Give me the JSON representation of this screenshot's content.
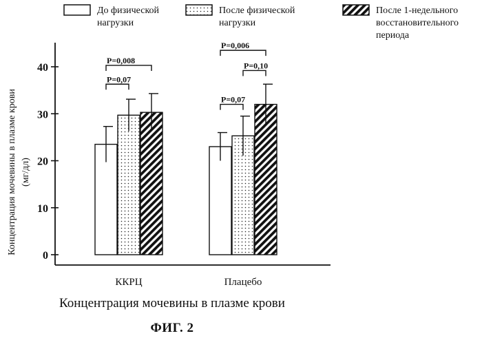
{
  "chart_data": {
    "type": "bar",
    "ylabel": "Концентрация мочевины в плазме крови",
    "yunit": "(мг/дл)",
    "ylim": [
      0,
      44
    ],
    "yticks": [
      0,
      10,
      20,
      30,
      40
    ],
    "categories": [
      "ККРЦ",
      "Плацебо"
    ],
    "legend_position": "top",
    "series": [
      {
        "name": "До физической нагрузки",
        "name_lines": [
          "До физической",
          "нагрузки"
        ],
        "pattern": "empty",
        "values": [
          23.5,
          23.0
        ],
        "errors": [
          3.8,
          3.0
        ]
      },
      {
        "name": "После физической нагрузки",
        "name_lines": [
          "После физической",
          "нагрузки"
        ],
        "pattern": "dots",
        "values": [
          29.7,
          25.3
        ],
        "errors": [
          3.4,
          4.2
        ]
      },
      {
        "name": "После 1-недельного восстановительного периода",
        "name_lines": [
          "После 1-недельного",
          "восстановительного",
          "периода"
        ],
        "pattern": "hatch",
        "values": [
          30.3,
          32.0
        ],
        "errors": [
          4.0,
          4.3
        ]
      }
    ],
    "annotations": [
      {
        "text": "P=0,008",
        "group": 0,
        "from": 0,
        "to": 2,
        "level": 40.3
      },
      {
        "text": "P=0,07",
        "group": 0,
        "from": 0,
        "to": 1,
        "level": 36.3
      },
      {
        "text": "P=0,006",
        "group": 1,
        "from": 0,
        "to": 2,
        "level": 43.5
      },
      {
        "text": "P=0,10",
        "group": 1,
        "from": 1,
        "to": 2,
        "level": 39.2
      },
      {
        "text": "P=0,07",
        "group": 1,
        "from": 0,
        "to": 1,
        "level": 32.0
      }
    ]
  },
  "caption": "Концентрация мочевины в плазме крови",
  "figure_label": "ФИГ. 2"
}
